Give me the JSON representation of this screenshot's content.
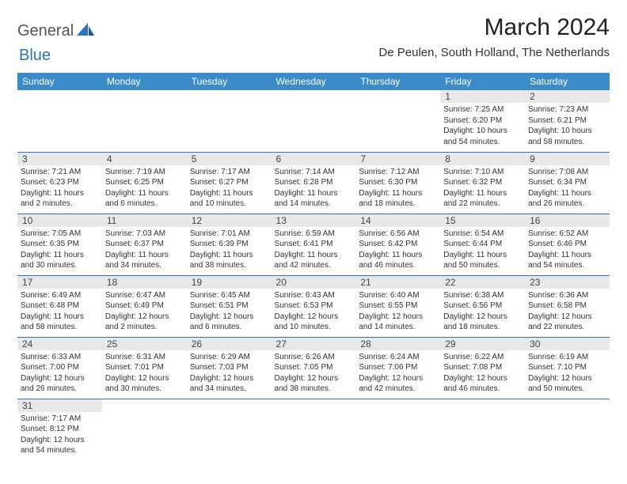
{
  "logo": {
    "part1": "General",
    "part2": "Blue"
  },
  "title": "March 2024",
  "location": "De Peulen, South Holland, The Netherlands",
  "weekdays": [
    "Sunday",
    "Monday",
    "Tuesday",
    "Wednesday",
    "Thursday",
    "Friday",
    "Saturday"
  ],
  "colors": {
    "header_bg": "#3b8bc9",
    "header_text": "#ffffff",
    "daynum_bg": "#e8e8e8",
    "border": "#2e75b6",
    "logo_blue": "#2e75b6"
  },
  "cells": [
    [
      null,
      null,
      null,
      null,
      null,
      {
        "n": "1",
        "sunrise": "Sunrise: 7:25 AM",
        "sunset": "Sunset: 6:20 PM",
        "daylight": "Daylight: 10 hours and 54 minutes."
      },
      {
        "n": "2",
        "sunrise": "Sunrise: 7:23 AM",
        "sunset": "Sunset: 6:21 PM",
        "daylight": "Daylight: 10 hours and 58 minutes."
      }
    ],
    [
      {
        "n": "3",
        "sunrise": "Sunrise: 7:21 AM",
        "sunset": "Sunset: 6:23 PM",
        "daylight": "Daylight: 11 hours and 2 minutes."
      },
      {
        "n": "4",
        "sunrise": "Sunrise: 7:19 AM",
        "sunset": "Sunset: 6:25 PM",
        "daylight": "Daylight: 11 hours and 6 minutes."
      },
      {
        "n": "5",
        "sunrise": "Sunrise: 7:17 AM",
        "sunset": "Sunset: 6:27 PM",
        "daylight": "Daylight: 11 hours and 10 minutes."
      },
      {
        "n": "6",
        "sunrise": "Sunrise: 7:14 AM",
        "sunset": "Sunset: 6:28 PM",
        "daylight": "Daylight: 11 hours and 14 minutes."
      },
      {
        "n": "7",
        "sunrise": "Sunrise: 7:12 AM",
        "sunset": "Sunset: 6:30 PM",
        "daylight": "Daylight: 11 hours and 18 minutes."
      },
      {
        "n": "8",
        "sunrise": "Sunrise: 7:10 AM",
        "sunset": "Sunset: 6:32 PM",
        "daylight": "Daylight: 11 hours and 22 minutes."
      },
      {
        "n": "9",
        "sunrise": "Sunrise: 7:08 AM",
        "sunset": "Sunset: 6:34 PM",
        "daylight": "Daylight: 11 hours and 26 minutes."
      }
    ],
    [
      {
        "n": "10",
        "sunrise": "Sunrise: 7:05 AM",
        "sunset": "Sunset: 6:35 PM",
        "daylight": "Daylight: 11 hours and 30 minutes."
      },
      {
        "n": "11",
        "sunrise": "Sunrise: 7:03 AM",
        "sunset": "Sunset: 6:37 PM",
        "daylight": "Daylight: 11 hours and 34 minutes."
      },
      {
        "n": "12",
        "sunrise": "Sunrise: 7:01 AM",
        "sunset": "Sunset: 6:39 PM",
        "daylight": "Daylight: 11 hours and 38 minutes."
      },
      {
        "n": "13",
        "sunrise": "Sunrise: 6:59 AM",
        "sunset": "Sunset: 6:41 PM",
        "daylight": "Daylight: 11 hours and 42 minutes."
      },
      {
        "n": "14",
        "sunrise": "Sunrise: 6:56 AM",
        "sunset": "Sunset: 6:42 PM",
        "daylight": "Daylight: 11 hours and 46 minutes."
      },
      {
        "n": "15",
        "sunrise": "Sunrise: 6:54 AM",
        "sunset": "Sunset: 6:44 PM",
        "daylight": "Daylight: 11 hours and 50 minutes."
      },
      {
        "n": "16",
        "sunrise": "Sunrise: 6:52 AM",
        "sunset": "Sunset: 6:46 PM",
        "daylight": "Daylight: 11 hours and 54 minutes."
      }
    ],
    [
      {
        "n": "17",
        "sunrise": "Sunrise: 6:49 AM",
        "sunset": "Sunset: 6:48 PM",
        "daylight": "Daylight: 11 hours and 58 minutes."
      },
      {
        "n": "18",
        "sunrise": "Sunrise: 6:47 AM",
        "sunset": "Sunset: 6:49 PM",
        "daylight": "Daylight: 12 hours and 2 minutes."
      },
      {
        "n": "19",
        "sunrise": "Sunrise: 6:45 AM",
        "sunset": "Sunset: 6:51 PM",
        "daylight": "Daylight: 12 hours and 6 minutes."
      },
      {
        "n": "20",
        "sunrise": "Sunrise: 6:43 AM",
        "sunset": "Sunset: 6:53 PM",
        "daylight": "Daylight: 12 hours and 10 minutes."
      },
      {
        "n": "21",
        "sunrise": "Sunrise: 6:40 AM",
        "sunset": "Sunset: 6:55 PM",
        "daylight": "Daylight: 12 hours and 14 minutes."
      },
      {
        "n": "22",
        "sunrise": "Sunrise: 6:38 AM",
        "sunset": "Sunset: 6:56 PM",
        "daylight": "Daylight: 12 hours and 18 minutes."
      },
      {
        "n": "23",
        "sunrise": "Sunrise: 6:36 AM",
        "sunset": "Sunset: 6:58 PM",
        "daylight": "Daylight: 12 hours and 22 minutes."
      }
    ],
    [
      {
        "n": "24",
        "sunrise": "Sunrise: 6:33 AM",
        "sunset": "Sunset: 7:00 PM",
        "daylight": "Daylight: 12 hours and 26 minutes."
      },
      {
        "n": "25",
        "sunrise": "Sunrise: 6:31 AM",
        "sunset": "Sunset: 7:01 PM",
        "daylight": "Daylight: 12 hours and 30 minutes."
      },
      {
        "n": "26",
        "sunrise": "Sunrise: 6:29 AM",
        "sunset": "Sunset: 7:03 PM",
        "daylight": "Daylight: 12 hours and 34 minutes."
      },
      {
        "n": "27",
        "sunrise": "Sunrise: 6:26 AM",
        "sunset": "Sunset: 7:05 PM",
        "daylight": "Daylight: 12 hours and 38 minutes."
      },
      {
        "n": "28",
        "sunrise": "Sunrise: 6:24 AM",
        "sunset": "Sunset: 7:06 PM",
        "daylight": "Daylight: 12 hours and 42 minutes."
      },
      {
        "n": "29",
        "sunrise": "Sunrise: 6:22 AM",
        "sunset": "Sunset: 7:08 PM",
        "daylight": "Daylight: 12 hours and 46 minutes."
      },
      {
        "n": "30",
        "sunrise": "Sunrise: 6:19 AM",
        "sunset": "Sunset: 7:10 PM",
        "daylight": "Daylight: 12 hours and 50 minutes."
      }
    ],
    [
      {
        "n": "31",
        "sunrise": "Sunrise: 7:17 AM",
        "sunset": "Sunset: 8:12 PM",
        "daylight": "Daylight: 12 hours and 54 minutes."
      },
      null,
      null,
      null,
      null,
      null,
      null
    ]
  ]
}
